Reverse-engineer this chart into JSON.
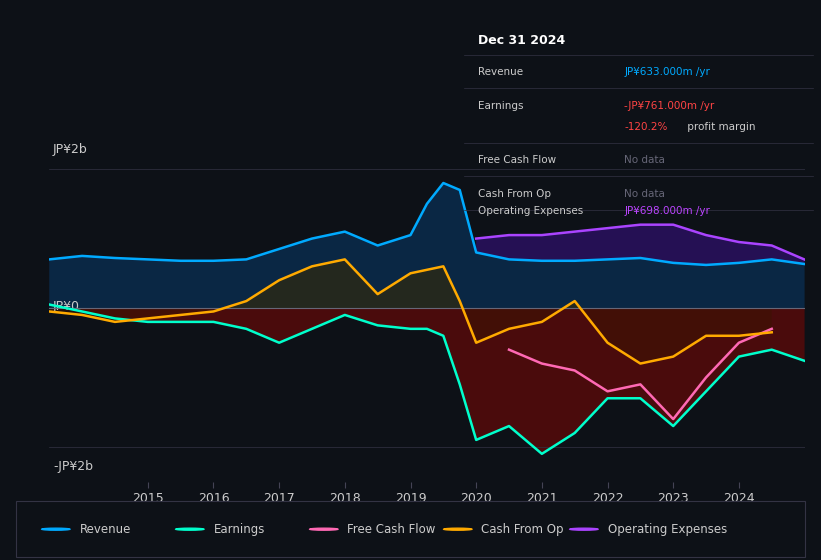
{
  "bg_color": "#0d1117",
  "plot_bg_color": "#0d1117",
  "axis_color": "#444455",
  "text_color": "#cccccc",
  "colors": {
    "revenue": "#00aaff",
    "earnings": "#00ffcc",
    "free_cash_flow": "#ff69b4",
    "cash_from_op": "#ffaa00",
    "operating_expenses": "#aa44ff"
  },
  "legend": [
    {
      "label": "Revenue",
      "color": "#00aaff"
    },
    {
      "label": "Earnings",
      "color": "#00ffcc"
    },
    {
      "label": "Free Cash Flow",
      "color": "#ff69b4"
    },
    {
      "label": "Cash From Op",
      "color": "#ffaa00"
    },
    {
      "label": "Operating Expenses",
      "color": "#aa44ff"
    }
  ],
  "tooltip": {
    "date": "Dec 31 2024",
    "revenue_label": "Revenue",
    "revenue_value": "JP¥633.000m /yr",
    "revenue_color": "#00aaff",
    "earnings_label": "Earnings",
    "earnings_value": "-JP¥761.000m /yr",
    "earnings_color": "#ff4444",
    "margin_value": "-120.2%",
    "margin_color": "#ff4444",
    "margin_text": " profit margin",
    "fcf_label": "Free Cash Flow",
    "fcf_value": "No data",
    "fcf_nodata_color": "#666677",
    "cfo_label": "Cash From Op",
    "cfo_value": "No data",
    "cfo_nodata_color": "#666677",
    "opex_label": "Operating Expenses",
    "opex_value": "JP¥698.000m /yr",
    "opex_color": "#bb44ff"
  },
  "ylabel_top": "JP¥2b",
  "ylabel_zero": "JP¥0",
  "ylabel_bottom": "-JP¥2b",
  "x_years": [
    2013.5,
    2014,
    2014.5,
    2015,
    2015.5,
    2016,
    2016.5,
    2017,
    2017.5,
    2018,
    2018.5,
    2019,
    2019.25,
    2019.5,
    2019.75,
    2020,
    2020.5,
    2021,
    2021.5,
    2022,
    2022.5,
    2023,
    2023.5,
    2024,
    2024.5,
    2025
  ],
  "revenue": [
    700,
    750,
    720,
    700,
    680,
    680,
    700,
    850,
    1000,
    1100,
    900,
    1050,
    1500,
    1800,
    1700,
    800,
    700,
    680,
    680,
    700,
    720,
    650,
    620,
    650,
    700,
    633
  ],
  "earnings": [
    50,
    -50,
    -150,
    -200,
    -200,
    -200,
    -300,
    -500,
    -300,
    -100,
    -250,
    -300,
    -300,
    -400,
    -1100,
    -1900,
    -1700,
    -2100,
    -1800,
    -1300,
    -1300,
    -1700,
    -1200,
    -700,
    -600,
    -761
  ],
  "free_cash_flow": [
    null,
    null,
    null,
    null,
    null,
    null,
    null,
    null,
    null,
    null,
    null,
    null,
    null,
    null,
    null,
    null,
    -600,
    -800,
    -900,
    -1200,
    -1100,
    -1600,
    -1000,
    -500,
    -300,
    null
  ],
  "cash_from_op": [
    -50,
    -100,
    -200,
    -150,
    -100,
    -50,
    100,
    400,
    600,
    700,
    200,
    500,
    550,
    600,
    100,
    -500,
    -300,
    -200,
    100,
    -500,
    -800,
    -700,
    -400,
    -400,
    -350,
    null
  ],
  "operating_expenses": [
    null,
    null,
    null,
    null,
    null,
    null,
    null,
    null,
    null,
    null,
    null,
    null,
    null,
    null,
    null,
    1000,
    1050,
    1050,
    1100,
    1150,
    1200,
    1200,
    1050,
    950,
    900,
    698
  ]
}
